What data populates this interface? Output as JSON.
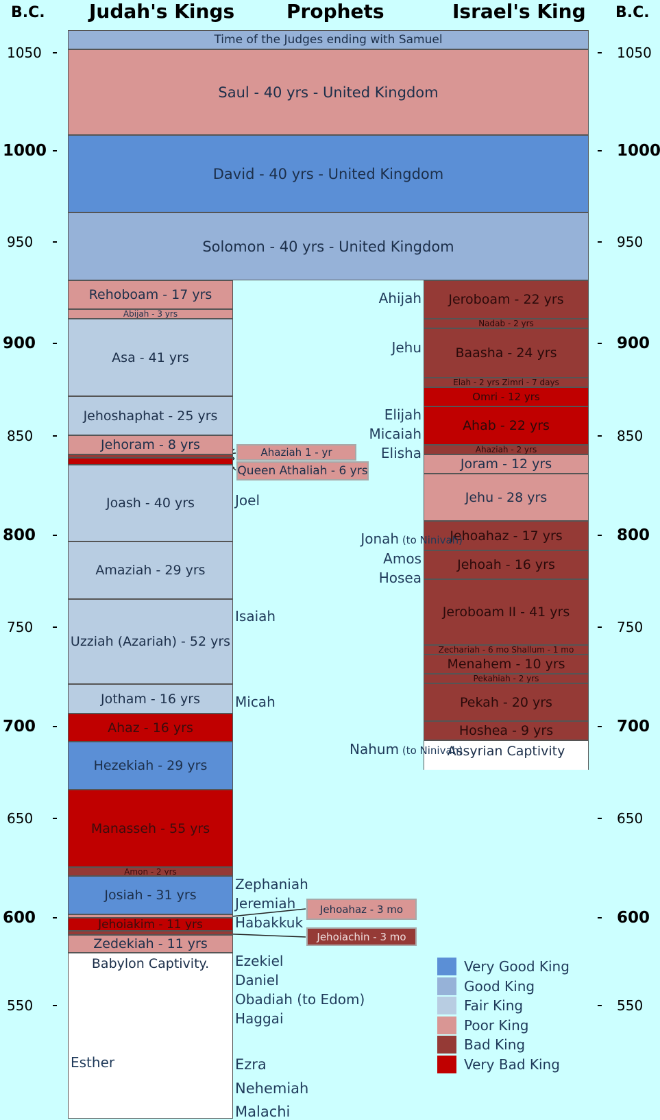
{
  "headers": {
    "bc_left": "B.C.",
    "judah": "Judah's Kings",
    "prophets": "Prophets",
    "israel": "Israel's King",
    "bc_right": "B.C."
  },
  "colors": {
    "very_good": "#5b8fd6",
    "good": "#96b2d8",
    "fair": "#b8cde2",
    "poor": "#d99694",
    "bad": "#953a36",
    "very_bad": "#c00000",
    "captivity": "#ffffff",
    "background": "#ccffff"
  },
  "years": [
    {
      "label": "1050",
      "big": false
    },
    {
      "label": "1000",
      "big": true
    },
    {
      "label": "950",
      "big": false
    },
    {
      "label": "900",
      "big": true
    },
    {
      "label": "850",
      "big": false
    },
    {
      "label": "800",
      "big": true
    },
    {
      "label": "750",
      "big": false
    },
    {
      "label": "700",
      "big": true
    },
    {
      "label": "650",
      "big": false
    },
    {
      "label": "600",
      "big": true
    },
    {
      "label": "550",
      "big": false
    }
  ],
  "united": [
    {
      "text": "Time of the Judges ending with Samuel",
      "rating": "good"
    },
    {
      "text": "Saul - 40 yrs - United Kingdom",
      "rating": "poor"
    },
    {
      "text": "David - 40 yrs - United Kingdom",
      "rating": "very_good"
    },
    {
      "text": "Solomon - 40 yrs - United Kingdom",
      "rating": "good"
    }
  ],
  "judah": [
    {
      "text": "Rehoboam - 17 yrs",
      "rating": "poor"
    },
    {
      "text": "Abijah - 3 yrs",
      "rating": "poor"
    },
    {
      "text": "Asa - 41 yrs",
      "rating": "fair"
    },
    {
      "text": "Jehoshaphat - 25 yrs",
      "rating": "fair"
    },
    {
      "text": "Jehoram - 8 yrs",
      "rating": "poor"
    },
    {
      "text": "",
      "rating": "bad"
    },
    {
      "text": "",
      "rating": "very_bad"
    },
    {
      "text": "Joash - 40 yrs",
      "rating": "fair"
    },
    {
      "text": "Amaziah - 29 yrs",
      "rating": "fair"
    },
    {
      "text": "Uzziah (Azariah) - 52 yrs",
      "rating": "fair"
    },
    {
      "text": "Jotham - 16 yrs",
      "rating": "fair"
    },
    {
      "text": "Ahaz - 16 yrs",
      "rating": "very_bad"
    },
    {
      "text": "Hezekiah - 29 yrs",
      "rating": "very_good"
    },
    {
      "text": "Manasseh - 55 yrs",
      "rating": "very_bad"
    },
    {
      "text": "Amon - 2 yrs",
      "rating": "bad"
    },
    {
      "text": "Josiah - 31 yrs",
      "rating": "very_good"
    },
    {
      "text": "",
      "rating": "poor"
    },
    {
      "text": "Jehoiakim - 11 yrs",
      "rating": "very_bad"
    },
    {
      "text": "",
      "rating": "bad"
    },
    {
      "text": "Zedekiah - 11 yrs",
      "rating": "poor"
    },
    {
      "text": "Babylon Captivity.",
      "rating": "captivity"
    }
  ],
  "judah_callouts": [
    {
      "text": "Ahaziah 1 - yr",
      "rating": "poor"
    },
    {
      "text": "Queen Athaliah - 6 yrs",
      "rating": "poor"
    },
    {
      "text": "Jehoahaz - 3 mo",
      "rating": "poor"
    },
    {
      "text": "Jehoiachin - 3 mo",
      "rating": "bad"
    }
  ],
  "israel": [
    {
      "text": "Jeroboam - 22 yrs",
      "rating": "bad"
    },
    {
      "text": "Nadab - 2 yrs",
      "rating": "bad"
    },
    {
      "text": "Baasha - 24 yrs",
      "rating": "bad"
    },
    {
      "text": "Elah - 2 yrs     Zimri - 7 days",
      "rating": "bad"
    },
    {
      "text": "Omri - 12 yrs",
      "rating": "very_bad"
    },
    {
      "text": "Ahab - 22 yrs",
      "rating": "very_bad"
    },
    {
      "text": "Ahaziah - 2 yrs",
      "rating": "bad"
    },
    {
      "text": "Joram - 12 yrs",
      "rating": "poor"
    },
    {
      "text": "Jehu - 28 yrs",
      "rating": "poor"
    },
    {
      "text": "Jehoahaz - 17 yrs",
      "rating": "bad"
    },
    {
      "text": "Jehoah - 16 yrs",
      "rating": "bad"
    },
    {
      "text": "Jeroboam II - 41 yrs",
      "rating": "bad"
    },
    {
      "text": "Zechariah - 6 mo     Shallum - 1 mo",
      "rating": "bad"
    },
    {
      "text": "Menahem - 10 yrs",
      "rating": "bad"
    },
    {
      "text": "Pekahiah - 2 yrs",
      "rating": "bad"
    },
    {
      "text": "Pekah - 20 yrs",
      "rating": "bad"
    },
    {
      "text": "Hoshea - 9 yrs",
      "rating": "bad"
    },
    {
      "text": "Assyrian Captivity",
      "rating": "captivity"
    }
  ],
  "prophets": [
    {
      "name": "Ahijah",
      "note": ""
    },
    {
      "name": "Jehu",
      "note": ""
    },
    {
      "name": "Elijah",
      "note": ""
    },
    {
      "name": "Micaiah",
      "note": ""
    },
    {
      "name": "Elisha",
      "note": ""
    },
    {
      "name": "Joel",
      "note": ""
    },
    {
      "name": "Jonah",
      "note": "(to Ninivah)"
    },
    {
      "name": "Amos",
      "note": ""
    },
    {
      "name": "Hosea",
      "note": ""
    },
    {
      "name": "Isaiah",
      "note": ""
    },
    {
      "name": "Micah",
      "note": ""
    },
    {
      "name": "Nahum",
      "note": "(to Ninivah)"
    },
    {
      "name": "Zephaniah",
      "note": ""
    },
    {
      "name": "Jeremiah",
      "note": ""
    },
    {
      "name": "Habakkuk",
      "note": ""
    },
    {
      "name": "Ezekiel",
      "note": ""
    },
    {
      "name": "Daniel",
      "note": ""
    },
    {
      "name": "Obadiah (to Edom)",
      "note": ""
    },
    {
      "name": "Haggai",
      "note": ""
    },
    {
      "name": "Ezra",
      "note": ""
    },
    {
      "name": "Nehemiah",
      "note": ""
    },
    {
      "name": "Malachi",
      "note": ""
    }
  ],
  "esther": "Esther",
  "legend": [
    {
      "label": "Very Good King",
      "rating": "very_good"
    },
    {
      "label": "Good King",
      "rating": "good"
    },
    {
      "label": "Fair King",
      "rating": "fair"
    },
    {
      "label": "Poor King",
      "rating": "poor"
    },
    {
      "label": "Bad King",
      "rating": "bad"
    },
    {
      "label": "Very Bad King",
      "rating": "very_bad"
    }
  ]
}
